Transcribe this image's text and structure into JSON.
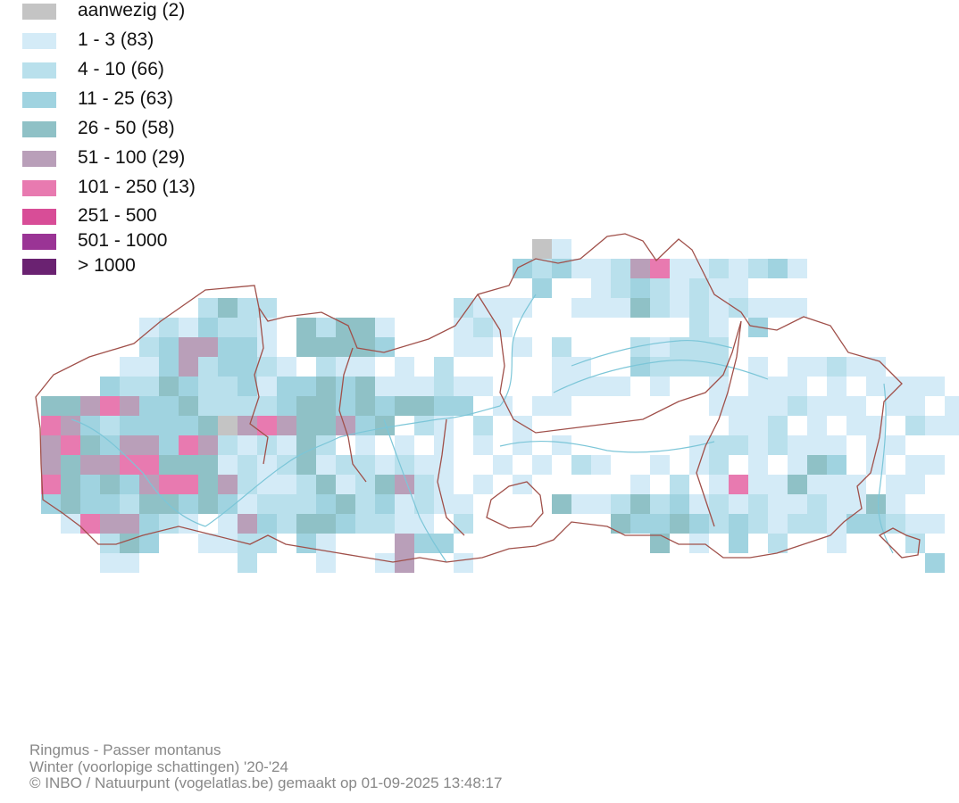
{
  "legend": {
    "items": [
      {
        "label": "aanwezig (2)",
        "color": "#c4c4c4"
      },
      {
        "label": "1 - 3 (83)",
        "color": "#d4ebf7"
      },
      {
        "label": "4 - 10 (66)",
        "color": "#b9e0ec"
      },
      {
        "label": "11 - 25 (63)",
        "color": "#a0d3e0"
      },
      {
        "label": "26 - 50 (58)",
        "color": "#8fc1c6"
      },
      {
        "label": "51 - 100 (29)",
        "color": "#b99fb9"
      },
      {
        "label": "101 - 250 (13)",
        "color": "#e87ab0"
      },
      {
        "label": "251 - 500",
        "color": "#d84d97"
      },
      {
        "label": "501 - 1000",
        "color": "#9a3495"
      },
      {
        "label": "> 1000",
        "color": "#6a2271"
      }
    ]
  },
  "map": {
    "border_color": "#a0504a",
    "river_color": "#7cc6d8"
  },
  "credits": {
    "species": "Ringmus - Passer montanus",
    "season": "Winter (voorlopige schattingen) '20-'24",
    "source": "© INBO / Natuurpunt (vogelatlas.be) gemaakt op 01-09-2025 13:48:17"
  }
}
